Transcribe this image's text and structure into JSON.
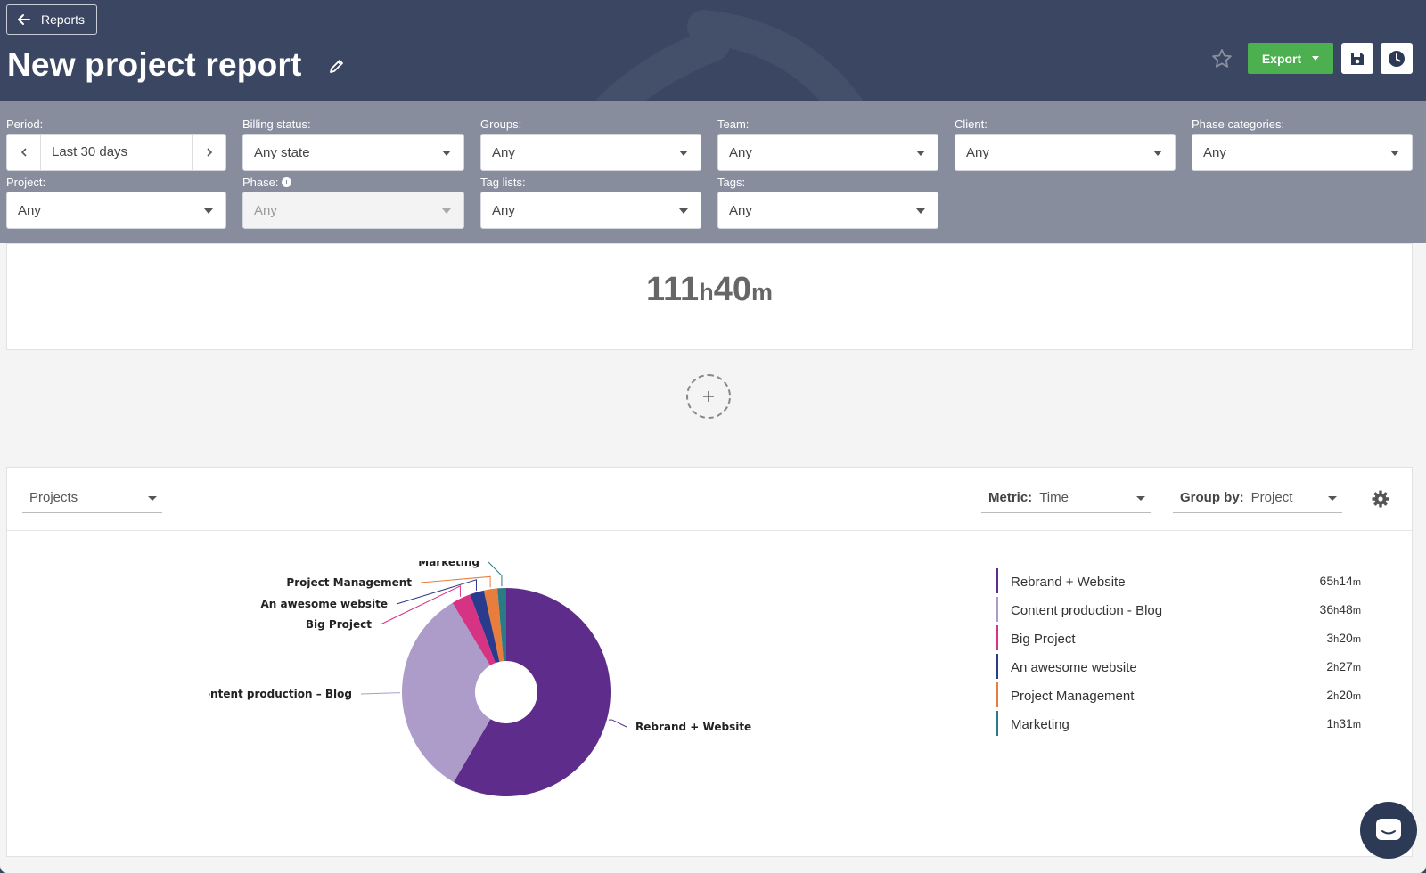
{
  "header": {
    "back_label": "Reports",
    "title": "New project report",
    "export_label": "Export",
    "icons": [
      "arrow-left-icon",
      "pencil-icon",
      "star-icon",
      "save-icon",
      "clock-icon"
    ]
  },
  "filters": {
    "period": {
      "label": "Period:",
      "value": "Last 30 days"
    },
    "billing_status": {
      "label": "Billing status:",
      "value": "Any state"
    },
    "groups": {
      "label": "Groups:",
      "value": "Any"
    },
    "team": {
      "label": "Team:",
      "value": "Any"
    },
    "client": {
      "label": "Client:",
      "value": "Any"
    },
    "phase_categories": {
      "label": "Phase categories:",
      "value": "Any"
    },
    "project": {
      "label": "Project:",
      "value": "Any"
    },
    "phase": {
      "label": "Phase:",
      "value": "Any"
    },
    "tag_lists": {
      "label": "Tag lists:",
      "value": "Any"
    },
    "tags": {
      "label": "Tags:",
      "value": "Any"
    }
  },
  "summary": {
    "hours": "111",
    "h_unit": "h",
    "minutes": "40",
    "m_unit": "m"
  },
  "widget": {
    "view_select": "Projects",
    "metric_label": "Metric:",
    "metric_value": "Time",
    "groupby_label": "Group by:",
    "groupby_value": "Project"
  },
  "chart_data": {
    "type": "pie",
    "donut": true,
    "series": [
      {
        "name": "Rebrand + Website",
        "label": "Rebrand + Website",
        "value_minutes": 3914,
        "display": [
          "65",
          "h",
          "14",
          "m"
        ],
        "color": "#5e2d8c"
      },
      {
        "name": "Content production - Blog",
        "label": "Content production – Blog",
        "value_minutes": 2208,
        "display": [
          "36",
          "h",
          "48",
          "m"
        ],
        "color": "#ad9bc9"
      },
      {
        "name": "Big Project",
        "label": "Big Project",
        "value_minutes": 200,
        "display": [
          "3",
          "h",
          "20",
          "m"
        ],
        "color": "#d63384"
      },
      {
        "name": "An awesome website",
        "label": "An awesome website",
        "value_minutes": 147,
        "display": [
          "2",
          "h",
          "27",
          "m"
        ],
        "color": "#2a3a8c"
      },
      {
        "name": "Project Management",
        "label": "Project Management",
        "value_minutes": 140,
        "display": [
          "2",
          "h",
          "20",
          "m"
        ],
        "color": "#e87d3e"
      },
      {
        "name": "Marketing",
        "label": "Marketing",
        "value_minutes": 91,
        "display": [
          "1",
          "h",
          "31",
          "m"
        ],
        "color": "#2c7a84"
      }
    ],
    "legend_position": "right"
  }
}
